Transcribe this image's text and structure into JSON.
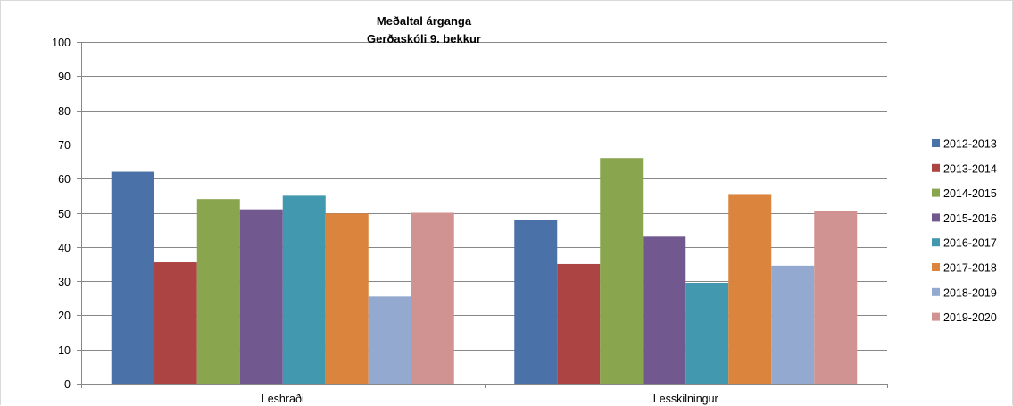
{
  "chart_data": {
    "type": "bar",
    "title": "Meðaltal árganga",
    "subtitle": "Gerðaskóli 9. bekkur",
    "xlabel": "",
    "ylabel": "",
    "ylim": [
      0,
      100
    ],
    "yticks": [
      0,
      10,
      20,
      30,
      40,
      50,
      60,
      70,
      80,
      90,
      100
    ],
    "grid": true,
    "legend_position": "right",
    "categories": [
      "Leshraði",
      "Lesskilningur"
    ],
    "series": [
      {
        "name": "2012-2013",
        "color": "#4a72a8",
        "values": [
          62,
          48
        ]
      },
      {
        "name": "2013-2014",
        "color": "#ab4442",
        "values": [
          35.5,
          35
        ]
      },
      {
        "name": "2014-2015",
        "color": "#89a54e",
        "values": [
          54,
          66
        ]
      },
      {
        "name": "2015-2016",
        "color": "#71588f",
        "values": [
          51,
          43
        ]
      },
      {
        "name": "2016-2017",
        "color": "#4198af",
        "values": [
          55,
          29.5
        ]
      },
      {
        "name": "2017-2018",
        "color": "#db843d",
        "values": [
          49.8,
          55.5
        ]
      },
      {
        "name": "2018-2019",
        "color": "#93a9cf",
        "values": [
          25.5,
          34.5
        ]
      },
      {
        "name": "2019-2020",
        "color": "#d19392",
        "values": [
          50,
          50.5
        ]
      }
    ]
  }
}
